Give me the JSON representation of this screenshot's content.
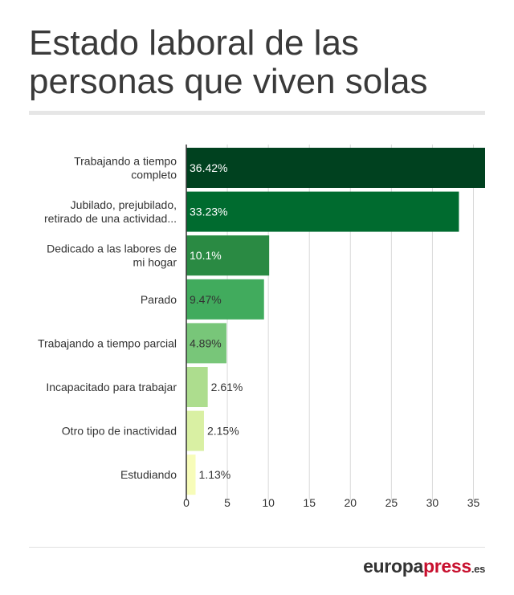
{
  "title": "Estado laboral de las personas que viven solas",
  "logo": {
    "part1": "europa",
    "part2": "press",
    "part3": ".es"
  },
  "colors": {
    "bars": [
      "#00411f",
      "#006b2f",
      "#2a8a43",
      "#41ab5d",
      "#78c679",
      "#addd8e",
      "#d9f0a3",
      "#f7fcb9"
    ],
    "logo_red": "#c8102e",
    "grid": "#d9d9d9"
  },
  "chart_data": {
    "type": "bar",
    "orientation": "horizontal",
    "categories": [
      [
        "Trabajando a tiempo",
        "completo"
      ],
      [
        "Jubilado, prejubilado,",
        "retirado de una actividad..."
      ],
      [
        "Dedicado a las labores de",
        "mi hogar"
      ],
      [
        "Parado"
      ],
      [
        "Trabajando a tiempo parcial"
      ],
      [
        "Incapacitado para trabajar"
      ],
      [
        "Otro tipo de inactividad"
      ],
      [
        "Estudiando"
      ]
    ],
    "values": [
      36.42,
      33.23,
      10.1,
      9.47,
      4.89,
      2.61,
      2.15,
      1.13
    ],
    "value_labels": [
      "36.42%",
      "33.23%",
      "10.1%",
      "9.47%",
      "4.89%",
      "2.61%",
      "2.15%",
      "1.13%"
    ],
    "x_ticks": [
      0,
      5,
      10,
      15,
      20,
      25,
      30,
      35
    ],
    "xlim": [
      0,
      36.42
    ],
    "grid": true
  }
}
